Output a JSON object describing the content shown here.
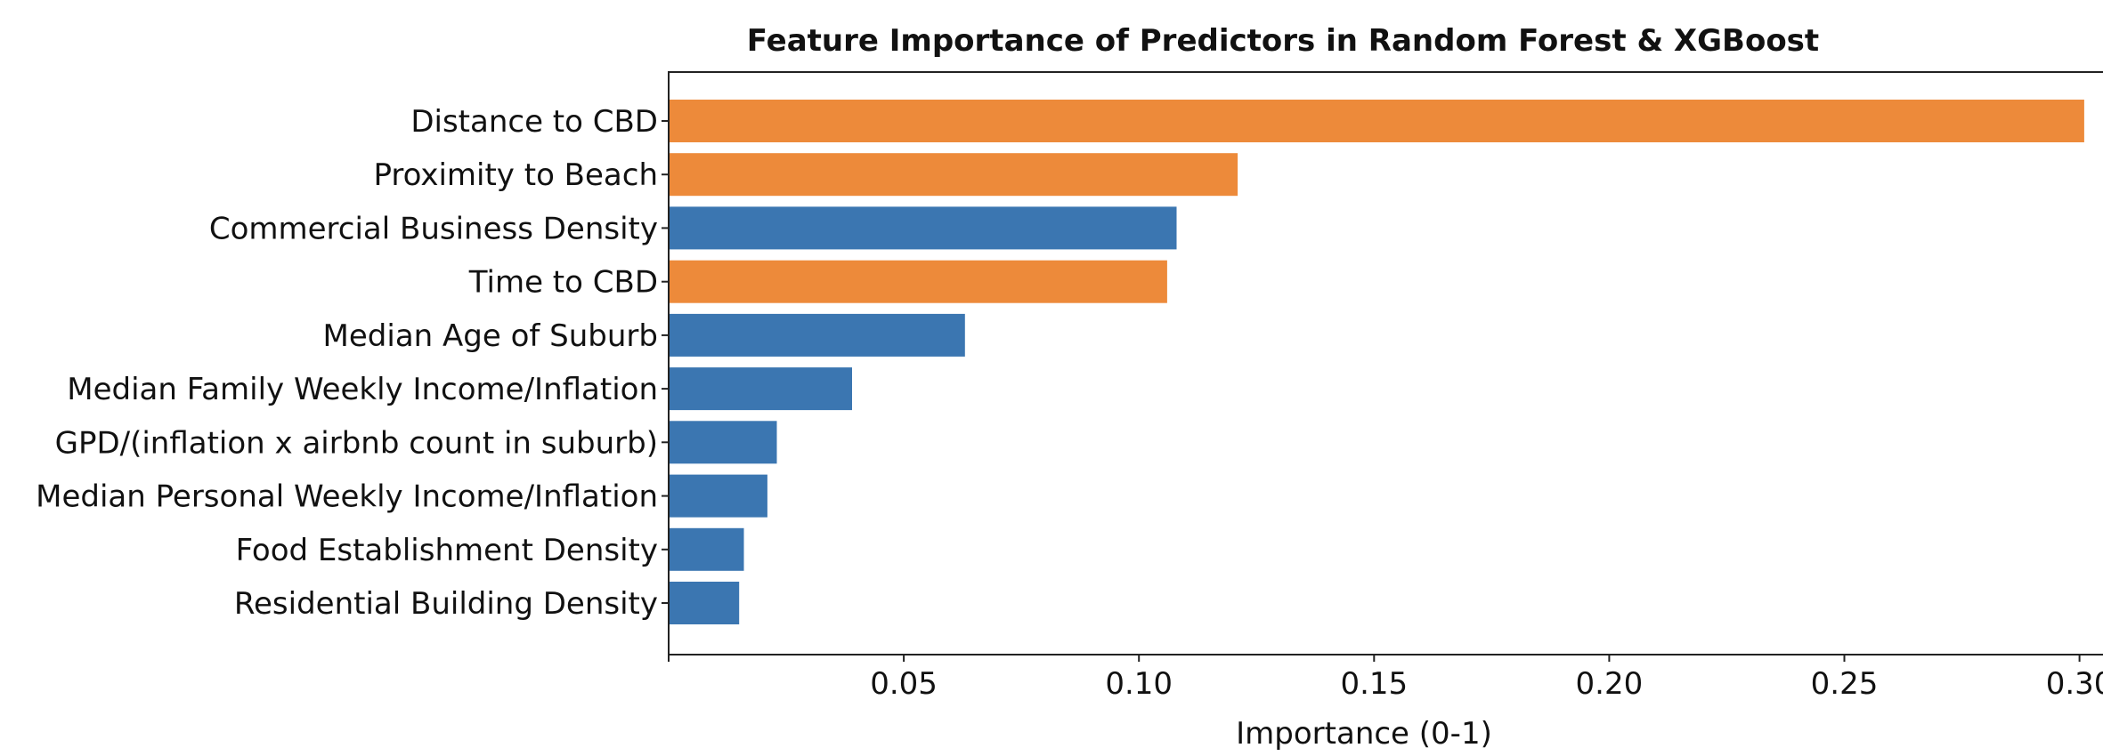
{
  "chart_data": {
    "type": "bar",
    "orientation": "horizontal",
    "title": "Feature Importance of Predictors in Random Forest & XGBoost",
    "xlabel": "Importance (0-1)",
    "ylabel": "",
    "xlim": [
      0,
      0.305
    ],
    "xticks": [
      0.05,
      0.1,
      0.15,
      0.2,
      0.25,
      0.3
    ],
    "xtick_labels": [
      "0.05",
      "0.10",
      "0.15",
      "0.20",
      "0.25",
      "0.30"
    ],
    "grid": false,
    "categories": [
      "Distance to CBD",
      "Proximity to Beach",
      "Commercial Business Density",
      "Time to CBD",
      "Median Age of Suburb",
      "Median Family Weekly Income/Inflation",
      "GPD/(inflation x airbnb count in suburb)",
      "Median Personal Weekly Income/Inflation",
      "Food Establishment Density",
      "Residential Building Density"
    ],
    "values": [
      0.301,
      0.121,
      0.108,
      0.106,
      0.063,
      0.039,
      0.023,
      0.021,
      0.016,
      0.015
    ],
    "bar_colors": [
      "#ED8A3A",
      "#ED8A3A",
      "#3B76B1",
      "#ED8A3A",
      "#3B76B1",
      "#3B76B1",
      "#3B76B1",
      "#3B76B1",
      "#3B76B1",
      "#3B76B1"
    ]
  }
}
